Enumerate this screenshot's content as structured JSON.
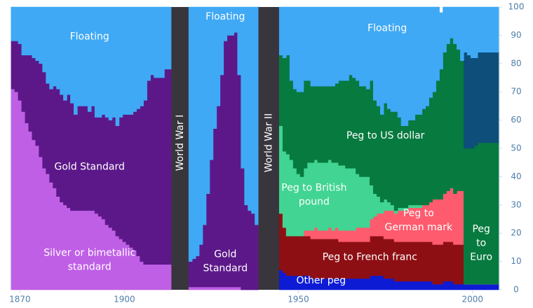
{
  "chart_data": {
    "type": "area",
    "title": "",
    "xlabel": "",
    "ylabel": "",
    "xlim": [
      1868,
      2007
    ],
    "ylim": [
      0,
      100
    ],
    "y_ticks": [
      0,
      10,
      20,
      30,
      40,
      50,
      60,
      70,
      80,
      90,
      100
    ],
    "x_ticks": [
      1870,
      1900,
      1950,
      2000
    ],
    "stack_order_bottom_to_top": [
      "Silver or bimetallic standard",
      "Gold Standard",
      "Other peg",
      "Peg to French franc",
      "Peg to German mark",
      "Peg to British pound",
      "Peg to US dollar",
      "Peg to Euro",
      "Floating"
    ],
    "colors": {
      "floating": "#3fa9f5",
      "gold": "#5c1889",
      "silver": "#bf5fe6",
      "usd": "#077a3f",
      "gbp": "#41d492",
      "dem": "#ff5b6e",
      "frf": "#8d0f14",
      "other": "#0e1bd4",
      "euro": "#0d4f7a",
      "war": "#38363c",
      "axis_text": "#4e7fa8",
      "label_text": "#ffffff"
    },
    "periods": [
      {
        "name": "Pre-WWI",
        "years": [
          1868,
          1869,
          1870,
          1871,
          1872,
          1873,
          1874,
          1875,
          1876,
          1877,
          1878,
          1879,
          1880,
          1881,
          1882,
          1883,
          1884,
          1885,
          1886,
          1887,
          1888,
          1889,
          1890,
          1891,
          1892,
          1893,
          1894,
          1895,
          1896,
          1897,
          1898,
          1899,
          1900,
          1901,
          1902,
          1903,
          1904,
          1905,
          1906,
          1907,
          1908,
          1909,
          1910,
          1911,
          1912,
          1913
        ],
        "series": [
          {
            "name": "Silver or bimetallic standard",
            "values": [
              71,
              70,
              67,
              63,
              59,
              56,
              53,
              51,
              47,
              43,
              41,
              38,
              36,
              33,
              31,
              30,
              29,
              28,
              28,
              28,
              28,
              28,
              28,
              28,
              27,
              26,
              25,
              23,
              22,
              21,
              19,
              18,
              17,
              16,
              15,
              14,
              12,
              10,
              9,
              9,
              9,
              9,
              9,
              9,
              9,
              9
            ]
          },
          {
            "name": "Gold Standard",
            "values": [
              17,
              18,
              20,
              20,
              24,
              27,
              29,
              30,
              33,
              34,
              32,
              33,
              36,
              38,
              38,
              37,
              40,
              38,
              34,
              37,
              37,
              37,
              35,
              37,
              34,
              35,
              37,
              38,
              38,
              40,
              39,
              43,
              45,
              46,
              47,
              49,
              52,
              55,
              58,
              65,
              67,
              66,
              66,
              66,
              69,
              69
            ]
          },
          {
            "name": "Floating",
            "values": [
              12,
              12,
              13,
              17,
              17,
              17,
              18,
              19,
              20,
              23,
              27,
              29,
              28,
              29,
              31,
              33,
              31,
              34,
              38,
              35,
              35,
              35,
              37,
              35,
              39,
              39,
              38,
              39,
              40,
              39,
              42,
              39,
              38,
              38,
              38,
              37,
              36,
              35,
              33,
              26,
              24,
              25,
              25,
              25,
              22,
              22
            ]
          }
        ]
      },
      {
        "name": "World War I",
        "years": [
          1914,
          1915,
          1916,
          1917,
          1918
        ],
        "label": "World War I"
      },
      {
        "name": "Interwar",
        "years": [
          1919,
          1920,
          1921,
          1922,
          1923,
          1924,
          1925,
          1926,
          1927,
          1928,
          1929,
          1930,
          1931,
          1932,
          1933,
          1934,
          1935,
          1936,
          1937,
          1938
        ],
        "series": [
          {
            "name": "Silver or bimetallic standard",
            "values": [
              1,
              1,
              1,
              1,
              1,
              1,
              1,
              1,
              1,
              1,
              1,
              1,
              1,
              1,
              1,
              0,
              0,
              0,
              0,
              0
            ]
          },
          {
            "name": "Gold Standard",
            "values": [
              9,
              10,
              11,
              15,
              22,
              33,
              45,
              56,
              64,
              75,
              87,
              89,
              89,
              90,
              75,
              43,
              30,
              28,
              27,
              23
            ]
          },
          {
            "name": "Floating",
            "values": [
              90,
              89,
              88,
              84,
              77,
              66,
              54,
              43,
              35,
              24,
              12,
              10,
              10,
              9,
              24,
              57,
              70,
              72,
              73,
              77
            ]
          }
        ]
      },
      {
        "name": "World War II",
        "years": [
          1939,
          1940,
          1941,
          1942,
          1943,
          1944
        ],
        "label": "World War II"
      },
      {
        "name": "Post-WWII",
        "years": [
          1945,
          1946,
          1947,
          1948,
          1949,
          1950,
          1951,
          1952,
          1953,
          1954,
          1955,
          1956,
          1957,
          1958,
          1959,
          1960,
          1961,
          1962,
          1963,
          1964,
          1965,
          1966,
          1967,
          1968,
          1969,
          1970,
          1971,
          1972,
          1973,
          1974,
          1975,
          1976,
          1977,
          1978,
          1979,
          1980,
          1981,
          1982,
          1983,
          1984,
          1985,
          1986,
          1987,
          1988,
          1989,
          1990,
          1991,
          1992,
          1993,
          1994,
          1995,
          1996,
          1997,
          1998,
          1999,
          2000,
          2001,
          2002,
          2003,
          2004,
          2005,
          2006,
          2007
        ],
        "series": [
          {
            "name": "Other peg",
            "values": [
              7,
              6,
              5,
              5,
              5,
              5,
              5,
              5,
              5,
              4,
              4,
              4,
              4,
              4,
              4,
              4,
              4,
              4,
              4,
              4,
              4,
              4,
              4,
              4,
              4,
              4,
              5,
              5,
              5,
              5,
              4,
              4,
              4,
              3,
              3,
              3,
              3,
              3,
              3,
              3,
              3,
              3,
              3,
              3,
              2,
              2,
              2,
              3,
              3,
              3,
              2,
              2,
              2,
              2,
              2,
              2,
              2,
              2,
              2,
              2,
              2,
              2,
              2
            ]
          },
          {
            "name": "Peg to French franc",
            "values": [
              20,
              16,
              14,
              14,
              14,
              14,
              14,
              14,
              14,
              14,
              14,
              14,
              14,
              14,
              14,
              14,
              14,
              13,
              13,
              13,
              13,
              13,
              13,
              13,
              13,
              13,
              14,
              14,
              14,
              14,
              14,
              14,
              14,
              14,
              14,
              14,
              14,
              14,
              14,
              14,
              14,
              14,
              14,
              14,
              14,
              14,
              14,
              14,
              14,
              14,
              14,
              14,
              14,
              0,
              0,
              0,
              0,
              0,
              0,
              0,
              0,
              0,
              0
            ]
          },
          {
            "name": "Peg to German mark",
            "values": [
              0,
              0,
              0,
              0,
              0,
              0,
              0,
              2,
              2,
              3,
              4,
              3,
              3,
              3,
              4,
              3,
              4,
              4,
              4,
              4,
              4,
              4,
              5,
              5,
              5,
              5,
              6,
              7,
              8,
              8,
              10,
              10,
              10,
              10,
              11,
              11,
              11,
              12,
              12,
              12,
              12,
              13,
              13,
              14,
              16,
              16,
              16,
              17,
              18,
              19,
              18,
              19,
              19,
              0,
              0,
              0,
              0,
              0,
              0,
              0,
              0,
              0,
              0
            ]
          },
          {
            "name": "Peg to British pound",
            "values": [
              31,
              27,
              29,
              27,
              24,
              22,
              21,
              22,
              24,
              24,
              24,
              24,
              24,
              24,
              24,
              24,
              23,
              23,
              23,
              22,
              22,
              22,
              19,
              18,
              18,
              18,
              12,
              8,
              6,
              4,
              4,
              3,
              2,
              1,
              1,
              1,
              1,
              1,
              1,
              1,
              1,
              0,
              0,
              0,
              0,
              0,
              0,
              0,
              0,
              0,
              0,
              0,
              0,
              0,
              0,
              0,
              0,
              0,
              0,
              0,
              0,
              0,
              0
            ]
          },
          {
            "name": "Peg to US dollar",
            "values": [
              25,
              33,
              35,
              28,
              28,
              29,
              30,
              31,
              29,
              27,
              26,
              27,
              27,
              27,
              26,
              27,
              28,
              30,
              30,
              31,
              33,
              32,
              33,
              32,
              32,
              31,
              37,
              33,
              32,
              31,
              34,
              33,
              33,
              35,
              32,
              29,
              29,
              30,
              30,
              32,
              32,
              34,
              35,
              37,
              38,
              42,
              46,
              50,
              52,
              53,
              53,
              50,
              46,
              48,
              48,
              48,
              49,
              50,
              50,
              50,
              50,
              50,
              50
            ]
          },
          {
            "name": "Peg to Euro",
            "values": [
              0,
              0,
              0,
              0,
              0,
              0,
              0,
              0,
              0,
              0,
              0,
              0,
              0,
              0,
              0,
              0,
              0,
              0,
              0,
              0,
              0,
              0,
              0,
              0,
              0,
              0,
              0,
              0,
              0,
              0,
              0,
              0,
              0,
              0,
              0,
              0,
              0,
              0,
              0,
              0,
              0,
              0,
              0,
              0,
              0,
              0,
              0,
              0,
              0,
              0,
              0,
              0,
              0,
              34,
              33,
              32,
              31,
              32,
              32,
              32,
              32,
              32,
              32
            ]
          },
          {
            "name": "Floating",
            "values": [
              17,
              18,
              17,
              26,
              29,
              30,
              30,
              26,
              26,
              28,
              28,
              28,
              28,
              28,
              28,
              28,
              27,
              26,
              26,
              26,
              24,
              25,
              26,
              28,
              28,
              29,
              26,
              33,
              35,
              38,
              34,
              36,
              37,
              37,
              39,
              42,
              42,
              40,
              40,
              38,
              38,
              36,
              35,
              32,
              30,
              26,
              20,
              16,
              13,
              11,
              13,
              15,
              19,
              16,
              17,
              18,
              18,
              16,
              16,
              16,
              16,
              16,
              16
            ]
          }
        ]
      }
    ],
    "annotations": [
      {
        "id": "floating-1",
        "lines": [
          "Floating"
        ],
        "x": 1890,
        "y": 89.5
      },
      {
        "id": "floating-2",
        "lines": [
          "Floating"
        ],
        "x": 1929,
        "y": 96.5
      },
      {
        "id": "floating-3",
        "lines": [
          "Floating"
        ],
        "x": 1975.5,
        "y": 92.5
      },
      {
        "id": "gold-1",
        "lines": [
          "Gold Standard"
        ],
        "x": 1890,
        "y": 43.5
      },
      {
        "id": "silver",
        "lines": [
          "Silver or bimetallic",
          "standard"
        ],
        "x": 1890,
        "y": 10.5
      },
      {
        "id": "gold-2",
        "lines": [
          "Gold",
          "Standard"
        ],
        "x": 1929,
        "y": 10
      },
      {
        "id": "usd",
        "lines": [
          "Peg to US dollar"
        ],
        "x": 1975,
        "y": 54.5
      },
      {
        "id": "gbp",
        "lines": [
          "Peg to British",
          "pound"
        ],
        "x": 1954.5,
        "y": 33.5
      },
      {
        "id": "dem",
        "lines": [
          "Peg to",
          "German mark"
        ],
        "x": 1984.5,
        "y": 24.5
      },
      {
        "id": "frf",
        "lines": [
          "Peg to French franc"
        ],
        "x": 1970.5,
        "y": 11.5
      },
      {
        "id": "other",
        "lines": [
          "Other peg"
        ],
        "x": 1956.5,
        "y": 3.2
      },
      {
        "id": "euro",
        "lines": [
          "Peg",
          "to",
          "Euro"
        ],
        "x": 2002.5,
        "y": 16.5
      }
    ]
  }
}
